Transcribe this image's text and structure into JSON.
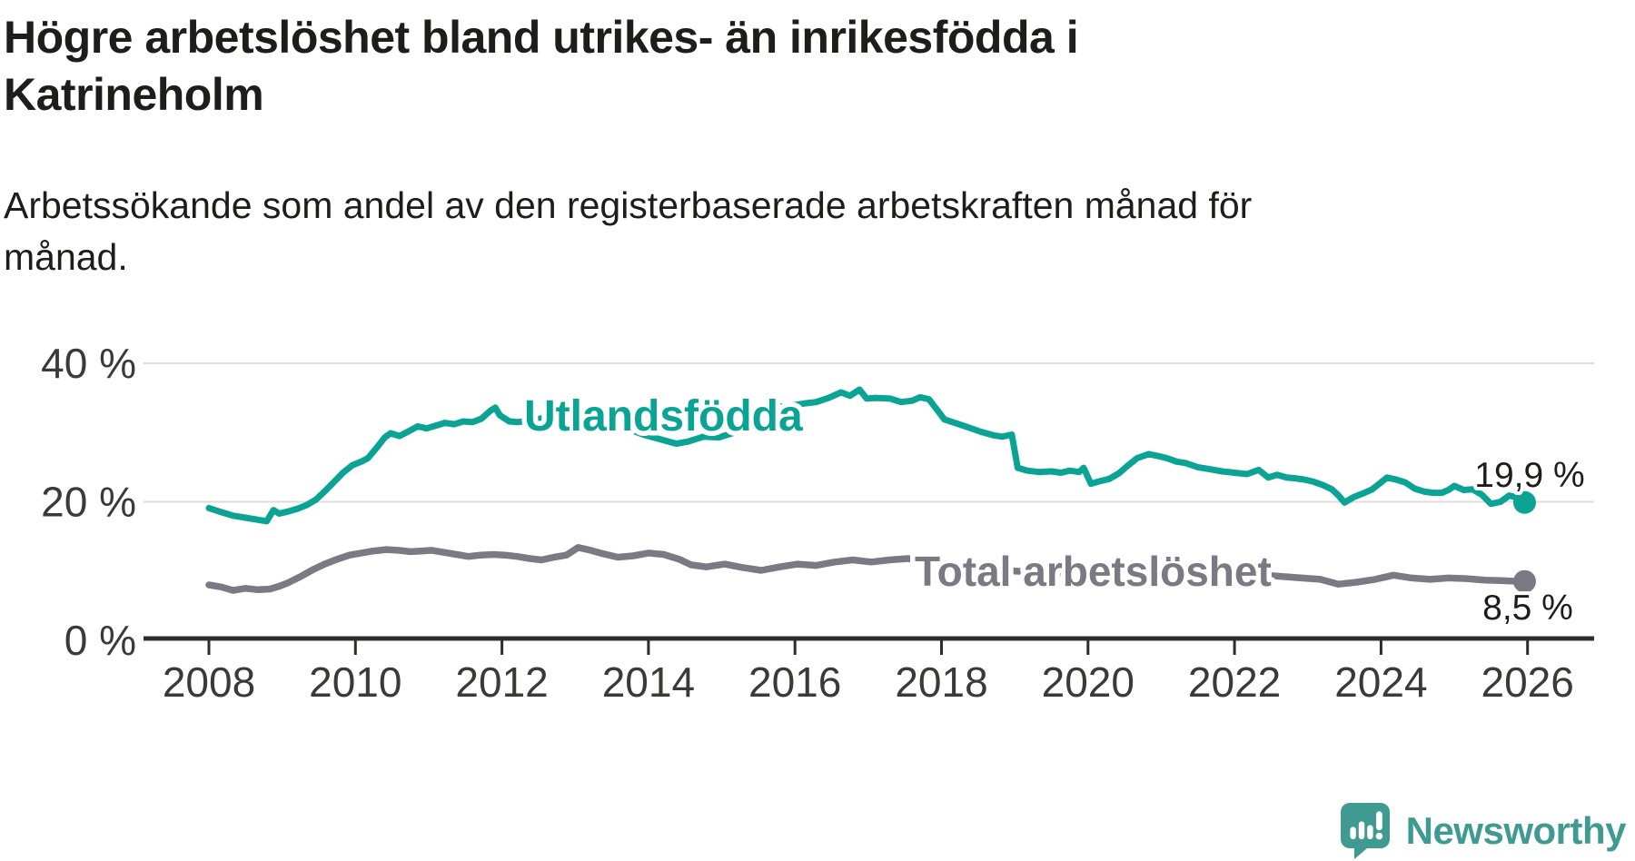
{
  "title": {
    "lines": [
      "Högre arbetslöshet bland utrikes- än inrikesfödda i",
      "Katrineholm"
    ],
    "full": "Högre arbetslöshet bland utrikes- än inrikesfödda i Katrineholm"
  },
  "subtitle": {
    "lines": [
      "Arbetssökande som andel av den registerbaserade arbetskraften månad för",
      "månad."
    ],
    "full": "Arbetssökande som andel av den registerbaserade arbetskraften månad för månad."
  },
  "footer": {
    "brand": "Newsworthy"
  },
  "colors": {
    "series_foreign": "#0BA394",
    "series_total": "#7B7983",
    "gridline": "#DCDCDC",
    "axis": "#2E2D2B",
    "tick_label": "#3B3A38",
    "text_dark": "#1D1D1B",
    "brand_teal": "#3F9A92"
  },
  "chart_data": {
    "type": "line",
    "title": "Högre arbetslöshet bland utrikes- än inrikesfödda i Katrineholm",
    "subtitle": "Arbetssökande som andel av den registerbaserade arbetskraften månad för månad.",
    "xlabel": "",
    "ylabel": "",
    "grid": "horizontal",
    "legend_position": "inline-labels",
    "x_axis": {
      "ticks": [
        2008,
        2010,
        2012,
        2014,
        2016,
        2018,
        2020,
        2022,
        2024,
        2026
      ],
      "range": [
        2007.6,
        2026.9
      ]
    },
    "y_axis": {
      "ticks": [
        {
          "value": 40,
          "label": "40 %"
        },
        {
          "value": 20,
          "label": "20 %"
        },
        {
          "value": 0,
          "label": "0 %"
        }
      ],
      "range": [
        0,
        42
      ]
    },
    "series": [
      {
        "name": "Utlandsfödda",
        "color": "#0BA394",
        "end_label": "19,9 %",
        "end_value": 19.9,
        "points": [
          [
            2008.0,
            19.1
          ],
          [
            2008.17,
            18.5
          ],
          [
            2008.33,
            18.0
          ],
          [
            2008.5,
            17.7
          ],
          [
            2008.67,
            17.4
          ],
          [
            2008.79,
            17.2
          ],
          [
            2008.88,
            18.8
          ],
          [
            2008.96,
            18.3
          ],
          [
            2009.08,
            18.6
          ],
          [
            2009.21,
            19.0
          ],
          [
            2009.33,
            19.5
          ],
          [
            2009.46,
            20.3
          ],
          [
            2009.58,
            21.5
          ],
          [
            2009.71,
            22.9
          ],
          [
            2009.83,
            24.2
          ],
          [
            2009.96,
            25.3
          ],
          [
            2010.08,
            25.8
          ],
          [
            2010.17,
            26.3
          ],
          [
            2010.29,
            27.8
          ],
          [
            2010.4,
            29.3
          ],
          [
            2010.48,
            29.9
          ],
          [
            2010.6,
            29.5
          ],
          [
            2010.73,
            30.2
          ],
          [
            2010.85,
            30.9
          ],
          [
            2010.97,
            30.6
          ],
          [
            2011.1,
            31.0
          ],
          [
            2011.22,
            31.4
          ],
          [
            2011.35,
            31.2
          ],
          [
            2011.47,
            31.6
          ],
          [
            2011.6,
            31.5
          ],
          [
            2011.72,
            32.0
          ],
          [
            2011.85,
            33.2
          ],
          [
            2011.91,
            33.6
          ],
          [
            2011.97,
            32.5
          ],
          [
            2012.1,
            31.6
          ],
          [
            2012.22,
            31.5
          ],
          [
            2012.33,
            31.7
          ],
          [
            2012.46,
            31.9
          ],
          [
            2012.63,
            32.2
          ],
          [
            2012.83,
            32.0
          ],
          [
            2013.0,
            32.3
          ],
          [
            2013.17,
            32.5
          ],
          [
            2013.33,
            31.9
          ],
          [
            2013.54,
            31.2
          ],
          [
            2013.75,
            30.4
          ],
          [
            2013.96,
            29.6
          ],
          [
            2014.17,
            29.0
          ],
          [
            2014.38,
            28.4
          ],
          [
            2014.54,
            28.7
          ],
          [
            2014.75,
            29.4
          ],
          [
            2014.96,
            29.3
          ],
          [
            2015.17,
            30.0
          ],
          [
            2015.38,
            31.2
          ],
          [
            2015.58,
            32.6
          ],
          [
            2015.79,
            33.7
          ],
          [
            2015.96,
            33.9
          ],
          [
            2016.13,
            34.2
          ],
          [
            2016.29,
            34.4
          ],
          [
            2016.46,
            35.0
          ],
          [
            2016.63,
            35.8
          ],
          [
            2016.75,
            35.3
          ],
          [
            2016.88,
            36.2
          ],
          [
            2016.98,
            34.9
          ],
          [
            2017.1,
            35.0
          ],
          [
            2017.3,
            34.9
          ],
          [
            2017.45,
            34.4
          ],
          [
            2017.6,
            34.6
          ],
          [
            2017.71,
            35.1
          ],
          [
            2017.83,
            34.8
          ],
          [
            2017.96,
            33.0
          ],
          [
            2018.04,
            31.9
          ],
          [
            2018.21,
            31.3
          ],
          [
            2018.38,
            30.7
          ],
          [
            2018.54,
            30.1
          ],
          [
            2018.71,
            29.6
          ],
          [
            2018.83,
            29.4
          ],
          [
            2018.96,
            29.7
          ],
          [
            2019.04,
            24.9
          ],
          [
            2019.17,
            24.5
          ],
          [
            2019.33,
            24.3
          ],
          [
            2019.5,
            24.4
          ],
          [
            2019.63,
            24.2
          ],
          [
            2019.75,
            24.5
          ],
          [
            2019.88,
            24.3
          ],
          [
            2019.94,
            24.9
          ],
          [
            2020.04,
            22.6
          ],
          [
            2020.17,
            23.0
          ],
          [
            2020.29,
            23.3
          ],
          [
            2020.42,
            24.1
          ],
          [
            2020.54,
            25.2
          ],
          [
            2020.67,
            26.3
          ],
          [
            2020.83,
            26.9
          ],
          [
            2020.96,
            26.6
          ],
          [
            2021.08,
            26.3
          ],
          [
            2021.21,
            25.8
          ],
          [
            2021.33,
            25.6
          ],
          [
            2021.5,
            25.0
          ],
          [
            2021.67,
            24.7
          ],
          [
            2021.83,
            24.4
          ],
          [
            2022.0,
            24.2
          ],
          [
            2022.17,
            24.0
          ],
          [
            2022.33,
            24.6
          ],
          [
            2022.46,
            23.5
          ],
          [
            2022.58,
            23.9
          ],
          [
            2022.71,
            23.5
          ],
          [
            2022.83,
            23.4
          ],
          [
            2022.96,
            23.2
          ],
          [
            2023.08,
            22.9
          ],
          [
            2023.21,
            22.4
          ],
          [
            2023.33,
            21.8
          ],
          [
            2023.42,
            20.9
          ],
          [
            2023.5,
            19.9
          ],
          [
            2023.63,
            20.7
          ],
          [
            2023.75,
            21.2
          ],
          [
            2023.88,
            21.8
          ],
          [
            2024.0,
            22.8
          ],
          [
            2024.08,
            23.5
          ],
          [
            2024.21,
            23.2
          ],
          [
            2024.33,
            22.8
          ],
          [
            2024.46,
            21.9
          ],
          [
            2024.58,
            21.5
          ],
          [
            2024.71,
            21.3
          ],
          [
            2024.83,
            21.3
          ],
          [
            2024.92,
            21.7
          ],
          [
            2025.0,
            22.3
          ],
          [
            2025.13,
            21.7
          ],
          [
            2025.25,
            21.8
          ],
          [
            2025.38,
            21.0
          ],
          [
            2025.5,
            19.7
          ],
          [
            2025.63,
            20.0
          ],
          [
            2025.75,
            20.9
          ],
          [
            2025.83,
            20.7
          ],
          [
            2025.92,
            20.3
          ],
          [
            2025.96,
            19.9
          ]
        ]
      },
      {
        "name": "Total arbetslöshet",
        "color": "#7B7983",
        "end_label": "8,5 %",
        "end_value": 8.5,
        "points": [
          [
            2008.0,
            8.0
          ],
          [
            2008.17,
            7.7
          ],
          [
            2008.33,
            7.2
          ],
          [
            2008.5,
            7.5
          ],
          [
            2008.67,
            7.3
          ],
          [
            2008.83,
            7.4
          ],
          [
            2008.96,
            7.8
          ],
          [
            2009.08,
            8.3
          ],
          [
            2009.25,
            9.2
          ],
          [
            2009.42,
            10.2
          ],
          [
            2009.58,
            11.0
          ],
          [
            2009.75,
            11.7
          ],
          [
            2009.92,
            12.3
          ],
          [
            2010.08,
            12.6
          ],
          [
            2010.25,
            12.9
          ],
          [
            2010.42,
            13.1
          ],
          [
            2010.58,
            13.0
          ],
          [
            2010.75,
            12.8
          ],
          [
            2010.92,
            12.9
          ],
          [
            2011.04,
            13.0
          ],
          [
            2011.21,
            12.7
          ],
          [
            2011.38,
            12.4
          ],
          [
            2011.54,
            12.1
          ],
          [
            2011.71,
            12.3
          ],
          [
            2011.88,
            12.4
          ],
          [
            2012.04,
            12.3
          ],
          [
            2012.21,
            12.1
          ],
          [
            2012.38,
            11.8
          ],
          [
            2012.54,
            11.6
          ],
          [
            2012.71,
            12.0
          ],
          [
            2012.88,
            12.3
          ],
          [
            2013.04,
            13.4
          ],
          [
            2013.21,
            13.0
          ],
          [
            2013.38,
            12.5
          ],
          [
            2013.58,
            12.0
          ],
          [
            2013.79,
            12.2
          ],
          [
            2014.0,
            12.6
          ],
          [
            2014.21,
            12.4
          ],
          [
            2014.42,
            11.7
          ],
          [
            2014.58,
            10.9
          ],
          [
            2014.79,
            10.6
          ],
          [
            2015.04,
            11.0
          ],
          [
            2015.29,
            10.5
          ],
          [
            2015.54,
            10.1
          ],
          [
            2015.79,
            10.6
          ],
          [
            2016.04,
            11.0
          ],
          [
            2016.29,
            10.8
          ],
          [
            2016.54,
            11.3
          ],
          [
            2016.79,
            11.6
          ],
          [
            2017.04,
            11.3
          ],
          [
            2017.29,
            11.6
          ],
          [
            2017.54,
            11.8
          ],
          [
            2017.79,
            11.4
          ],
          [
            2018.04,
            11.0
          ],
          [
            2018.5,
            10.4
          ],
          [
            2019.0,
            10.0
          ],
          [
            2019.5,
            9.7
          ],
          [
            2020.0,
            9.9
          ],
          [
            2020.33,
            11.0
          ],
          [
            2020.75,
            11.1
          ],
          [
            2021.25,
            10.4
          ],
          [
            2021.75,
            9.9
          ],
          [
            2022.08,
            9.6
          ],
          [
            2022.42,
            9.4
          ],
          [
            2022.67,
            9.2
          ],
          [
            2022.92,
            9.0
          ],
          [
            2023.17,
            8.8
          ],
          [
            2023.42,
            8.1
          ],
          [
            2023.67,
            8.4
          ],
          [
            2023.92,
            8.8
          ],
          [
            2024.17,
            9.4
          ],
          [
            2024.42,
            9.0
          ],
          [
            2024.67,
            8.8
          ],
          [
            2024.92,
            9.0
          ],
          [
            2025.17,
            8.9
          ],
          [
            2025.42,
            8.7
          ],
          [
            2025.67,
            8.6
          ],
          [
            2025.92,
            8.5
          ],
          [
            2025.96,
            8.5
          ]
        ]
      }
    ]
  }
}
